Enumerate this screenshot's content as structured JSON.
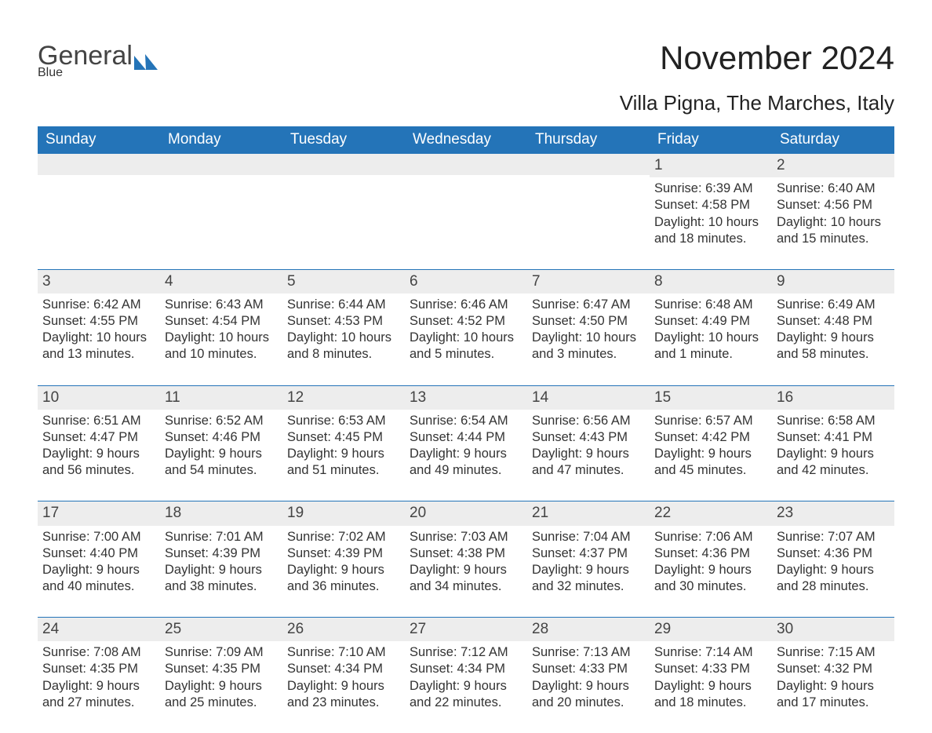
{
  "brand": {
    "part1": "General",
    "part2": "Blue",
    "color_general": "#444444",
    "color_blue": "#2474b8"
  },
  "title": "November 2024",
  "location": "Villa Pigna, The Marches, Italy",
  "daynames": [
    "Sunday",
    "Monday",
    "Tuesday",
    "Wednesday",
    "Thursday",
    "Friday",
    "Saturday"
  ],
  "colors": {
    "header_bg": "#2474b8",
    "header_text": "#ffffff",
    "daynum_bg": "#ededed",
    "text": "#333333",
    "rule": "#2474b8",
    "page_bg": "#ffffff"
  },
  "typography": {
    "title_fontsize": 42,
    "location_fontsize": 26,
    "dayname_fontsize": 19,
    "daynum_fontsize": 19,
    "body_fontsize": 16.5
  },
  "weeks": [
    [
      null,
      null,
      null,
      null,
      null,
      {
        "n": "1",
        "sunrise": "Sunrise: 6:39 AM",
        "sunset": "Sunset: 4:58 PM",
        "daylight": "Daylight: 10 hours and 18 minutes."
      },
      {
        "n": "2",
        "sunrise": "Sunrise: 6:40 AM",
        "sunset": "Sunset: 4:56 PM",
        "daylight": "Daylight: 10 hours and 15 minutes."
      }
    ],
    [
      {
        "n": "3",
        "sunrise": "Sunrise: 6:42 AM",
        "sunset": "Sunset: 4:55 PM",
        "daylight": "Daylight: 10 hours and 13 minutes."
      },
      {
        "n": "4",
        "sunrise": "Sunrise: 6:43 AM",
        "sunset": "Sunset: 4:54 PM",
        "daylight": "Daylight: 10 hours and 10 minutes."
      },
      {
        "n": "5",
        "sunrise": "Sunrise: 6:44 AM",
        "sunset": "Sunset: 4:53 PM",
        "daylight": "Daylight: 10 hours and 8 minutes."
      },
      {
        "n": "6",
        "sunrise": "Sunrise: 6:46 AM",
        "sunset": "Sunset: 4:52 PM",
        "daylight": "Daylight: 10 hours and 5 minutes."
      },
      {
        "n": "7",
        "sunrise": "Sunrise: 6:47 AM",
        "sunset": "Sunset: 4:50 PM",
        "daylight": "Daylight: 10 hours and 3 minutes."
      },
      {
        "n": "8",
        "sunrise": "Sunrise: 6:48 AM",
        "sunset": "Sunset: 4:49 PM",
        "daylight": "Daylight: 10 hours and 1 minute."
      },
      {
        "n": "9",
        "sunrise": "Sunrise: 6:49 AM",
        "sunset": "Sunset: 4:48 PM",
        "daylight": "Daylight: 9 hours and 58 minutes."
      }
    ],
    [
      {
        "n": "10",
        "sunrise": "Sunrise: 6:51 AM",
        "sunset": "Sunset: 4:47 PM",
        "daylight": "Daylight: 9 hours and 56 minutes."
      },
      {
        "n": "11",
        "sunrise": "Sunrise: 6:52 AM",
        "sunset": "Sunset: 4:46 PM",
        "daylight": "Daylight: 9 hours and 54 minutes."
      },
      {
        "n": "12",
        "sunrise": "Sunrise: 6:53 AM",
        "sunset": "Sunset: 4:45 PM",
        "daylight": "Daylight: 9 hours and 51 minutes."
      },
      {
        "n": "13",
        "sunrise": "Sunrise: 6:54 AM",
        "sunset": "Sunset: 4:44 PM",
        "daylight": "Daylight: 9 hours and 49 minutes."
      },
      {
        "n": "14",
        "sunrise": "Sunrise: 6:56 AM",
        "sunset": "Sunset: 4:43 PM",
        "daylight": "Daylight: 9 hours and 47 minutes."
      },
      {
        "n": "15",
        "sunrise": "Sunrise: 6:57 AM",
        "sunset": "Sunset: 4:42 PM",
        "daylight": "Daylight: 9 hours and 45 minutes."
      },
      {
        "n": "16",
        "sunrise": "Sunrise: 6:58 AM",
        "sunset": "Sunset: 4:41 PM",
        "daylight": "Daylight: 9 hours and 42 minutes."
      }
    ],
    [
      {
        "n": "17",
        "sunrise": "Sunrise: 7:00 AM",
        "sunset": "Sunset: 4:40 PM",
        "daylight": "Daylight: 9 hours and 40 minutes."
      },
      {
        "n": "18",
        "sunrise": "Sunrise: 7:01 AM",
        "sunset": "Sunset: 4:39 PM",
        "daylight": "Daylight: 9 hours and 38 minutes."
      },
      {
        "n": "19",
        "sunrise": "Sunrise: 7:02 AM",
        "sunset": "Sunset: 4:39 PM",
        "daylight": "Daylight: 9 hours and 36 minutes."
      },
      {
        "n": "20",
        "sunrise": "Sunrise: 7:03 AM",
        "sunset": "Sunset: 4:38 PM",
        "daylight": "Daylight: 9 hours and 34 minutes."
      },
      {
        "n": "21",
        "sunrise": "Sunrise: 7:04 AM",
        "sunset": "Sunset: 4:37 PM",
        "daylight": "Daylight: 9 hours and 32 minutes."
      },
      {
        "n": "22",
        "sunrise": "Sunrise: 7:06 AM",
        "sunset": "Sunset: 4:36 PM",
        "daylight": "Daylight: 9 hours and 30 minutes."
      },
      {
        "n": "23",
        "sunrise": "Sunrise: 7:07 AM",
        "sunset": "Sunset: 4:36 PM",
        "daylight": "Daylight: 9 hours and 28 minutes."
      }
    ],
    [
      {
        "n": "24",
        "sunrise": "Sunrise: 7:08 AM",
        "sunset": "Sunset: 4:35 PM",
        "daylight": "Daylight: 9 hours and 27 minutes."
      },
      {
        "n": "25",
        "sunrise": "Sunrise: 7:09 AM",
        "sunset": "Sunset: 4:35 PM",
        "daylight": "Daylight: 9 hours and 25 minutes."
      },
      {
        "n": "26",
        "sunrise": "Sunrise: 7:10 AM",
        "sunset": "Sunset: 4:34 PM",
        "daylight": "Daylight: 9 hours and 23 minutes."
      },
      {
        "n": "27",
        "sunrise": "Sunrise: 7:12 AM",
        "sunset": "Sunset: 4:34 PM",
        "daylight": "Daylight: 9 hours and 22 minutes."
      },
      {
        "n": "28",
        "sunrise": "Sunrise: 7:13 AM",
        "sunset": "Sunset: 4:33 PM",
        "daylight": "Daylight: 9 hours and 20 minutes."
      },
      {
        "n": "29",
        "sunrise": "Sunrise: 7:14 AM",
        "sunset": "Sunset: 4:33 PM",
        "daylight": "Daylight: 9 hours and 18 minutes."
      },
      {
        "n": "30",
        "sunrise": "Sunrise: 7:15 AM",
        "sunset": "Sunset: 4:32 PM",
        "daylight": "Daylight: 9 hours and 17 minutes."
      }
    ]
  ]
}
